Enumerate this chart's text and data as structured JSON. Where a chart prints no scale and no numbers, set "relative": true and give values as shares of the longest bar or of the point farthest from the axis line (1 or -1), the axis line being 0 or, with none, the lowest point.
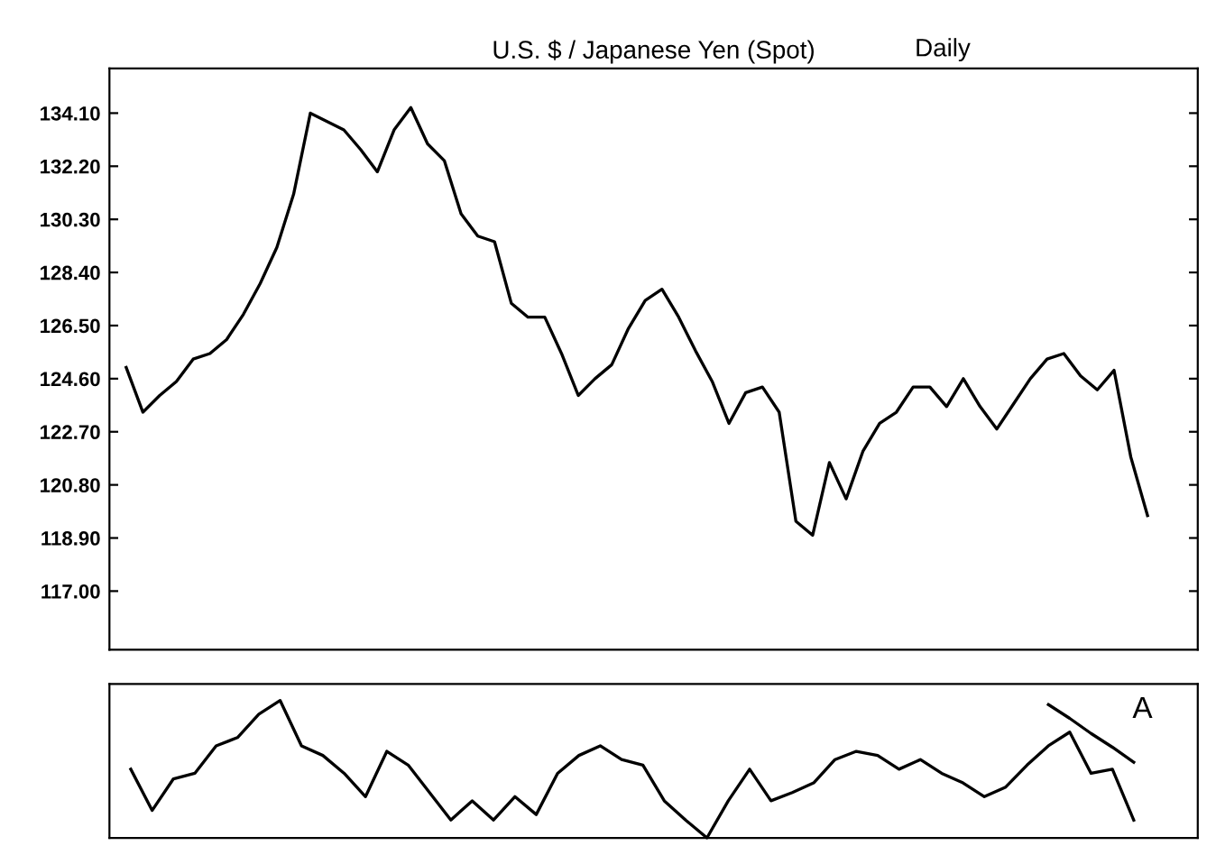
{
  "chart_data": [
    {
      "type": "line",
      "title": "U.S. $ / Japanese Yen (Spot)",
      "subtitle": "Daily",
      "color": "#000000",
      "categories": [
        null,
        null,
        null,
        null,
        null,
        null,
        null,
        null,
        null,
        null,
        null,
        null,
        null,
        null,
        null,
        null,
        null,
        null,
        null,
        null,
        null,
        null,
        null,
        null,
        null,
        null,
        null,
        null,
        null,
        null,
        null,
        null,
        null,
        null,
        null,
        null,
        null,
        null,
        null,
        null,
        null,
        null,
        null,
        null,
        null,
        null,
        null,
        null,
        null,
        null,
        null,
        null,
        null,
        null,
        null,
        null,
        null,
        null,
        null,
        null,
        null,
        null
      ],
      "values": [
        125.0,
        123.4,
        124.0,
        124.5,
        125.3,
        125.5,
        126.0,
        126.9,
        128.0,
        129.3,
        131.2,
        134.1,
        133.8,
        133.5,
        132.8,
        132.0,
        133.5,
        134.3,
        133.0,
        132.4,
        130.5,
        129.7,
        129.5,
        127.3,
        126.8,
        126.8,
        125.5,
        124.0,
        124.6,
        125.1,
        126.4,
        127.4,
        127.8,
        126.8,
        125.6,
        124.5,
        123.0,
        124.1,
        124.3,
        123.4,
        119.5,
        119.0,
        121.6,
        120.3,
        122.0,
        123.0,
        123.4,
        124.3,
        124.3,
        123.6,
        124.6,
        123.6,
        122.8,
        123.7,
        124.6,
        125.3,
        125.5,
        124.7,
        124.2,
        124.9,
        121.8,
        119.7
      ],
      "ylim": [
        114.9,
        135.7
      ],
      "yticks": [
        {
          "value": 134.1,
          "label": "134.10"
        },
        {
          "value": 132.2,
          "label": "132.20"
        },
        {
          "value": 130.3,
          "label": "130.30"
        },
        {
          "value": 128.4,
          "label": "128.40"
        },
        {
          "value": 126.5,
          "label": "126.50"
        },
        {
          "value": 124.6,
          "label": "124.60"
        },
        {
          "value": 122.7,
          "label": "122.70"
        },
        {
          "value": 120.8,
          "label": "120.80"
        },
        {
          "value": 118.9,
          "label": "118.90"
        },
        {
          "value": 117.0,
          "label": "117.00"
        }
      ],
      "tick_labels": "y",
      "grid": false
    },
    {
      "type": "line",
      "relative": true,
      "color": "#000000",
      "annotations": [
        "A"
      ],
      "tick_labels": false,
      "categories": [
        null,
        null,
        null,
        null,
        null,
        null,
        null,
        null,
        null,
        null,
        null,
        null,
        null,
        null,
        null,
        null,
        null,
        null,
        null,
        null,
        null,
        null,
        null,
        null,
        null,
        null,
        null,
        null,
        null,
        null,
        null,
        null,
        null,
        null,
        null,
        null,
        null,
        null,
        null,
        null,
        null,
        null,
        null,
        null,
        null,
        null,
        null,
        null
      ],
      "series": [
        {
          "values": [
            0.5,
            0.2,
            0.43,
            0.47,
            0.67,
            0.73,
            0.9,
            1.0,
            0.67,
            0.6,
            0.47,
            0.3,
            0.63,
            0.53,
            0.33,
            0.13,
            0.27,
            0.13,
            0.3,
            0.17,
            0.47,
            0.6,
            0.67,
            0.57,
            0.53,
            0.27,
            0.13,
            0.0,
            0.27,
            0.5,
            0.27,
            0.33,
            0.4,
            0.57,
            0.63,
            0.6,
            0.5,
            0.57,
            0.47,
            0.4,
            0.3,
            0.37,
            0.53,
            0.67,
            0.77,
            0.47,
            0.5,
            0.13
          ]
        },
        {
          "type": "line",
          "values": [
            null,
            null,
            null,
            null,
            null,
            null,
            null,
            null,
            null,
            null,
            null,
            null,
            null,
            null,
            null,
            null,
            null,
            null,
            null,
            null,
            null,
            null,
            null,
            null,
            null,
            null,
            null,
            null,
            null,
            null,
            null,
            null,
            null,
            null,
            null,
            null,
            null,
            null,
            null,
            null,
            null,
            null,
            null,
            0.97,
            0.87,
            0.76,
            0.66,
            0.55
          ]
        }
      ]
    }
  ]
}
